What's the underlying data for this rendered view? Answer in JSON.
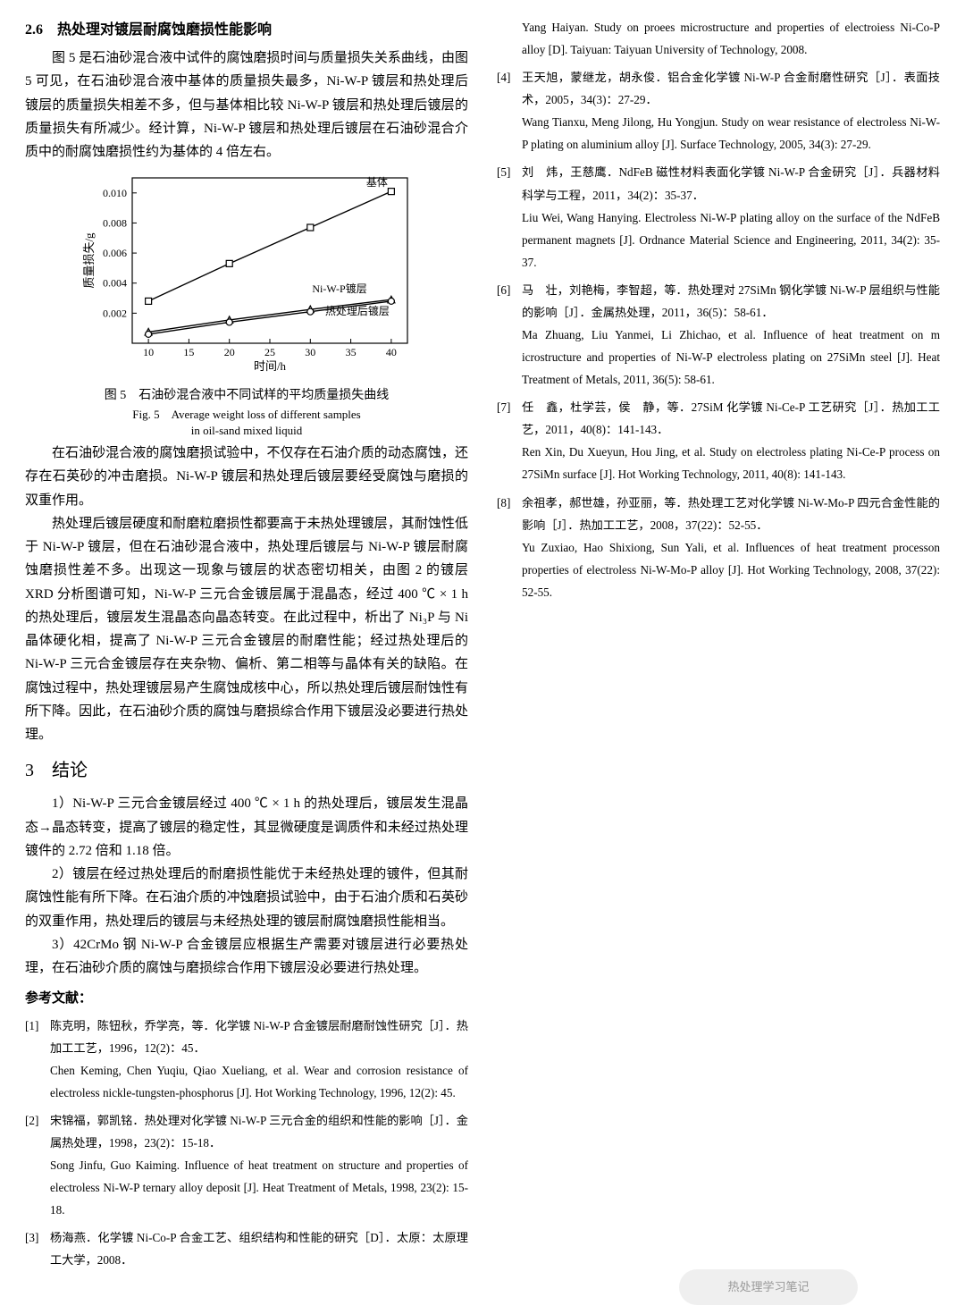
{
  "section26": {
    "heading": "2.6　热处理对镀层耐腐蚀磨损性能影响",
    "p1": "图 5 是石油砂混合液中试件的腐蚀磨损时间与质量损失关系曲线，由图 5 可见，在石油砂混合液中基体的质量损失最多，Ni-W-P 镀层和热处理后镀层的质量损失相差不多，但与基体相比较 Ni-W-P 镀层和热处理后镀层的质量损失有所减少。经计算，Ni-W-P 镀层和热处理后镀层在石油砂混合介质中的耐腐蚀磨损性约为基体的 4 倍左右。",
    "p2": "在石油砂混合液的腐蚀磨损试验中，不仅存在石油介质的动态腐蚀，还存在石英砂的冲击磨损。Ni-W-P 镀层和热处理后镀层要经受腐蚀与磨损的双重作用。",
    "p3": "热处理后镀层硬度和耐磨粒磨损性都要高于未热处理镀层，其耐蚀性低于 Ni-W-P 镀层，但在石油砂混合液中，热处理后镀层与 Ni-W-P 镀层耐腐蚀磨损性差不多。出现这一现象与镀层的状态密切相关，由图 2 的镀层 XRD 分析图谱可知，Ni-W-P 三元合金镀层属于混晶态，经过 400 ℃ × 1 h 的热处理后，镀层发生混晶态向晶态转变。在此过程中，析出了 Ni₃P 与 Ni 晶体硬化相，提高了 Ni-W-P 三元合金镀层的耐磨性能；经过热处理后的 Ni-W-P 三元合金镀层存在夹杂物、偏析、第二相等与晶体有关的缺陷。在腐蚀过程中，热处理镀层易产生腐蚀成核中心，所以热处理后镀层耐蚀性有所下降。因此，在石油砂介质的腐蚀与磨损综合作用下镀层没必要进行热处理。"
  },
  "fig5": {
    "caption_cn": "图 5　石油砂混合液中不同试样的平均质量损失曲线",
    "caption_en1": "Fig. 5　Average weight loss of different samples",
    "caption_en2": "in oil-sand mixed liquid",
    "xlabel": "时间/h",
    "ylabel": "质量损失/g",
    "xlim": [
      8,
      42
    ],
    "ylim": [
      0,
      0.011
    ],
    "xticks": [
      10,
      15,
      20,
      25,
      30,
      35,
      40
    ],
    "yticks": [
      0.002,
      0.004,
      0.006,
      0.008,
      0.01
    ],
    "series": {
      "substrate": {
        "label": "基体",
        "marker": "square",
        "pts": [
          [
            10,
            0.0028
          ],
          [
            20,
            0.0053
          ],
          [
            30,
            0.0077
          ],
          [
            40,
            0.0101
          ]
        ]
      },
      "niwp": {
        "label": "Ni-W-P镀层",
        "marker": "triangle",
        "pts": [
          [
            10,
            0.00075
          ],
          [
            20,
            0.00155
          ],
          [
            30,
            0.00225
          ],
          [
            40,
            0.0029
          ]
        ]
      },
      "heat": {
        "label": "热处理后镀层",
        "marker": "circle",
        "pts": [
          [
            10,
            0.0006
          ],
          [
            20,
            0.0014
          ],
          [
            30,
            0.0021
          ],
          [
            40,
            0.0028
          ]
        ]
      }
    },
    "line_color": "#000",
    "bg": "#fff",
    "axis_color": "#000",
    "label_fontsize": 13,
    "tick_fontsize": 12
  },
  "section3": {
    "heading": "3　结论",
    "c1": "1）Ni-W-P 三元合金镀层经过 400 ℃ × 1 h 的热处理后，镀层发生混晶态→晶态转变，提高了镀层的稳定性，其显微硬度是调质件和未经过热处理镀件的 2.72 倍和 1.18 倍。",
    "c2": "2）镀层在经过热处理后的耐磨损性能优于未经热处理的镀件，但其耐腐蚀性能有所下降。在石油介质的冲蚀磨损试验中，由于石油介质和石英砂的双重作用，热处理后的镀层与未经热处理的镀层耐腐蚀磨损性能相当。",
    "c3": "3）42CrMo 钢 Ni-W-P 合金镀层应根据生产需要对镀层进行必要热处理，在石油砂介质的腐蚀与磨损综合作用下镀层没必要进行热处理。"
  },
  "refs": {
    "heading": "参考文献：",
    "items": [
      {
        "n": "[1]",
        "cn": "陈克明，陈钮秋，乔学亮，等．化学镀 Ni-W-P 合金镀层耐磨耐蚀性研究［J］．热加工工艺，1996，12(2)：45．",
        "en": "Chen Keming, Chen Yuqiu, Qiao Xueliang, et al. Wear and corrosion resistance of electroless nickle-tungsten-phosphorus [J]. Hot Working Technology, 1996, 12(2): 45."
      },
      {
        "n": "[2]",
        "cn": "宋锦福，郭凯铭．热处理对化学镀 Ni-W-P 三元合金的组织和性能的影响［J］．金属热处理，1998，23(2)：15-18．",
        "en": "Song Jinfu, Guo Kaiming. Influence of heat treatment on structure and properties of electroless Ni-W-P ternary alloy deposit [J]. Heat Treatment of Metals, 1998, 23(2): 15-18."
      },
      {
        "n": "[3]",
        "cn": "杨海燕．化学镀 Ni-Co-P 合金工艺、组织结构和性能的研究［D］．太原：太原理工大学，2008．",
        "en": "Yang Haiyan. Study on proees microstructure and properties of electroiess Ni-Co-P alloy [D]. Taiyuan: Taiyuan University of Technology, 2008."
      },
      {
        "n": "[4]",
        "cn": "王天旭，蒙继龙，胡永俊．铝合金化学镀 Ni-W-P 合金耐磨性研究［J］．表面技术，2005，34(3)：27-29．",
        "en": "Wang Tianxu, Meng Jilong, Hu Yongjun. Study on wear resistance of electroless Ni-W-P plating on aluminium alloy [J]. Surface Technology, 2005, 34(3): 27-29."
      },
      {
        "n": "[5]",
        "cn": "刘　炜，王慈鹰．NdFeB 磁性材料表面化学镀 Ni-W-P 合金研究［J］．兵器材料科学与工程，2011，34(2)：35-37．",
        "en": "Liu Wei, Wang Hanying. Electroless Ni-W-P plating alloy on the surface of the NdFeB permanent magnets [J]. Ordnance Material Science and Engineering, 2011, 34(2): 35-37."
      },
      {
        "n": "[6]",
        "cn": "马　壮，刘艳梅，李智超，等．热处理对 27SiMn 钢化学镀 Ni-W-P 层组织与性能的影响［J］．金属热处理，2011，36(5)：58-61．",
        "en": "Ma Zhuang, Liu Yanmei, Li Zhichao, et al. Influence of heat treatment on m icrostructure and properties of Ni-W-P electroless plating on 27SiMn steel [J]. Heat Treatment of Metals, 2011, 36(5): 58-61."
      },
      {
        "n": "[7]",
        "cn": "任　鑫，杜学芸，侯　静，等．27SiM 化学镀 Ni-Ce-P 工艺研究［J］．热加工工艺，2011，40(8)：141-143．",
        "en": "Ren Xin, Du Xueyun, Hou Jing, et al. Study on electroless plating Ni-Ce-P process on 27SiMn surface [J]. Hot Working Technology, 2011, 40(8): 141-143."
      },
      {
        "n": "[8]",
        "cn": "余祖孝，郝世雄，孙亚丽，等．热处理工艺对化学镀 Ni-W-Mo-P 四元合金性能的影响［J］．热加工工艺，2008，37(22)：52-55．",
        "en": "Yu Zuxiao, Hao Shixiong, Sun Yali, et al. Influences of heat treatment processon properties of electroless Ni-W-Mo-P alloy [J]. Hot Working Technology, 2008, 37(22): 52-55."
      }
    ]
  },
  "watermark": "热处理学习笔记"
}
